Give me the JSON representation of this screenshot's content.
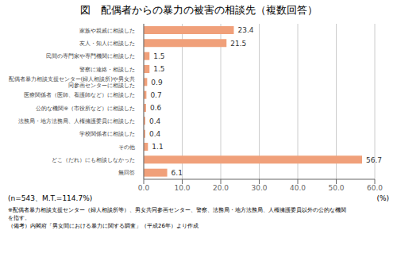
{
  "chart_data": {
    "type": "bar",
    "orientation": "horizontal",
    "title": "図　配偶者からの暴力の被害の相談先（複数回答）",
    "categories": [
      "家族や親戚に相談した",
      "友人・知人に相談した",
      "民間の専門家や専門機関に相談した",
      "警察に連絡・相談した",
      "配偶者暴力相談支援センター(婦人相談所)や男女共同参画センターに相談した",
      "医療関係者（医師、看護師など）に相談した",
      "公的な機関※（市役所など）に相談した",
      "法務局・地方法務局、人権擁護委員に相談した",
      "学校関係者に相談した",
      "その他",
      "どこ（だれ）にも相談しなかった",
      "無回答"
    ],
    "values": [
      23.4,
      21.5,
      1.5,
      1.5,
      0.9,
      0.7,
      0.6,
      0.4,
      0.4,
      1.1,
      56.7,
      6.1
    ],
    "color": "#f0a07a",
    "xlim": [
      0,
      60.0
    ],
    "xticks": [
      {
        "value": 0,
        "label": "0.0"
      },
      {
        "value": 10,
        "label": "10.0"
      },
      {
        "value": 20,
        "label": "20.0"
      },
      {
        "value": 30,
        "label": "30.0"
      },
      {
        "value": 40,
        "label": "40.0"
      },
      {
        "value": 50,
        "label": "50.0"
      },
      {
        "value": 60,
        "label": "60.0"
      }
    ],
    "xlabel": "(%)",
    "annotations": [
      "(n=543、M.T.=114.7%)",
      "※配偶者暴力相談支援センター（婦人相談所等）、男女共同参画センター、警察、法務局・地方法務局、人権擁護委員以外の公的な機関",
      "を指す。",
      "（備考）内閣府「男女間における暴力に関する調査」（平成26年）より作成"
    ],
    "grid": true,
    "data_labels": true
  }
}
